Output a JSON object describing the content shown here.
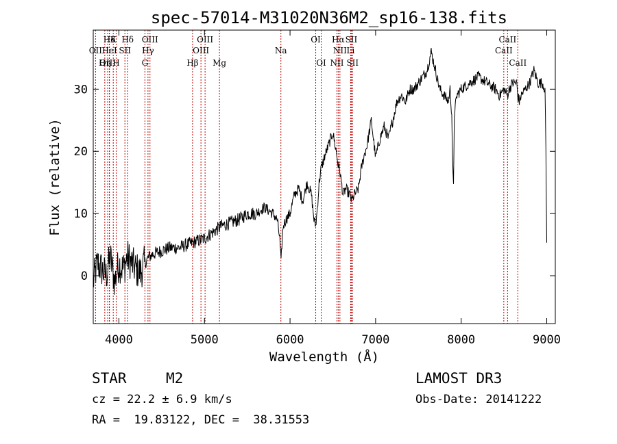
{
  "chart_data": {
    "type": "line",
    "title": "spec-57014-M31020N36M2_sp16-138.fits",
    "xlabel": "Wavelength (Å)",
    "ylabel": "Flux (relative)",
    "xlim": [
      3700,
      9100
    ],
    "ylim": [
      -7.7,
      39.5
    ],
    "xticks": [
      4000,
      5000,
      6000,
      7000,
      8000,
      9000
    ],
    "yticks": [
      0,
      10,
      20,
      30
    ],
    "grid": false,
    "legend": "none",
    "spectrum": {
      "name": "flux",
      "x": [
        3700,
        3750,
        3800,
        3850,
        3900,
        3950,
        4000,
        4050,
        4100,
        4150,
        4200,
        4250,
        4300,
        4350,
        4400,
        4500,
        4600,
        4700,
        4800,
        4900,
        5000,
        5100,
        5200,
        5300,
        5400,
        5500,
        5600,
        5700,
        5800,
        5850,
        5880,
        5895,
        5905,
        5920,
        5950,
        6000,
        6050,
        6100,
        6150,
        6200,
        6250,
        6280,
        6300,
        6320,
        6340,
        6360,
        6400,
        6450,
        6500,
        6540,
        6560,
        6580,
        6600,
        6620,
        6650,
        6700,
        6720,
        6750,
        6800,
        6830,
        6860,
        6900,
        6950,
        7000,
        7050,
        7100,
        7150,
        7200,
        7250,
        7300,
        7350,
        7400,
        7450,
        7500,
        7550,
        7600,
        7650,
        7700,
        7750,
        7800,
        7850,
        7870,
        7890,
        7900,
        7910,
        7920,
        7950,
        8000,
        8100,
        8200,
        8300,
        8400,
        8450,
        8500,
        8540,
        8560,
        8600,
        8650,
        8660,
        8680,
        8700,
        8750,
        8800,
        8850,
        8900,
        8950,
        8980,
        8990,
        9000
      ],
      "y": [
        -1,
        2,
        1,
        0,
        3,
        -1,
        2,
        1,
        3,
        2,
        1,
        0.5,
        2,
        3,
        3.5,
        4,
        4.5,
        4.5,
        5,
        5.5,
        6,
        7,
        8,
        8.5,
        9,
        10,
        10,
        11,
        10,
        9,
        6,
        2,
        5,
        8,
        9,
        10,
        13,
        14,
        12,
        15,
        13,
        9,
        8,
        11,
        15,
        17,
        19,
        21,
        23,
        20,
        18,
        17,
        15,
        13,
        14,
        13,
        12,
        13,
        14,
        17,
        19,
        21,
        25,
        19,
        22,
        24,
        22,
        25,
        28,
        29,
        28,
        30,
        30,
        31,
        32,
        33,
        36,
        33,
        30,
        29,
        28,
        30,
        26,
        18,
        14,
        26,
        29,
        30,
        31,
        32,
        31,
        30,
        29,
        30,
        29,
        30,
        31,
        31,
        29,
        28,
        29,
        30,
        31,
        33,
        31,
        31,
        30,
        20,
        5
      ]
    },
    "lines_top": [
      {
        "label": "Hδ",
        "x": 3889
      },
      {
        "label": "K",
        "x": 3934
      },
      {
        "label": "Hδ",
        "x": 4102
      },
      {
        "label": "OIII",
        "x": 4363
      },
      {
        "label": "OIII",
        "x": 5007
      },
      {
        "label": "OI",
        "x": 6300
      },
      {
        "label": "Hα",
        "x": 6563
      },
      {
        "label": "SII",
        "x": 6716
      },
      {
        "label": "CaII",
        "x": 8542
      }
    ],
    "lines_mid": [
      {
        "label": "OII",
        "x": 3727
      },
      {
        "label": "HeI",
        "x": 3889
      },
      {
        "label": "SII",
        "x": 4070
      },
      {
        "label": "Hγ",
        "x": 4340
      },
      {
        "label": "OIII",
        "x": 4959
      },
      {
        "label": "Na",
        "x": 5893
      },
      {
        "label": "NII",
        "x": 6583
      },
      {
        "label": "Li",
        "x": 6708
      },
      {
        "label": "CaII",
        "x": 8498
      }
    ],
    "lines_low": [
      {
        "label": "OIII",
        "x": 3869
      },
      {
        "label": "Hη",
        "x": 3835
      },
      {
        "label": "H",
        "x": 3968
      },
      {
        "label": "G",
        "x": 4304
      },
      {
        "label": "Hβ",
        "x": 4861
      },
      {
        "label": "Mg",
        "x": 5175
      },
      {
        "label": "OI",
        "x": 6364
      },
      {
        "label": "NII",
        "x": 6548
      },
      {
        "label": "SII",
        "x": 6731
      },
      {
        "label": "CaII",
        "x": 8662
      }
    ]
  },
  "info": {
    "class": "STAR",
    "subclass": "M2",
    "survey": "LAMOST DR3",
    "cz": "cz = 22.2 ± 6.9 km/s",
    "obs_date": "Obs-Date: 20141222",
    "coords": "RA =  19.83122, DEC =  38.31553"
  },
  "colors": {
    "axis": "#000000",
    "spectrum": "#000000",
    "marker": "#c00000"
  }
}
